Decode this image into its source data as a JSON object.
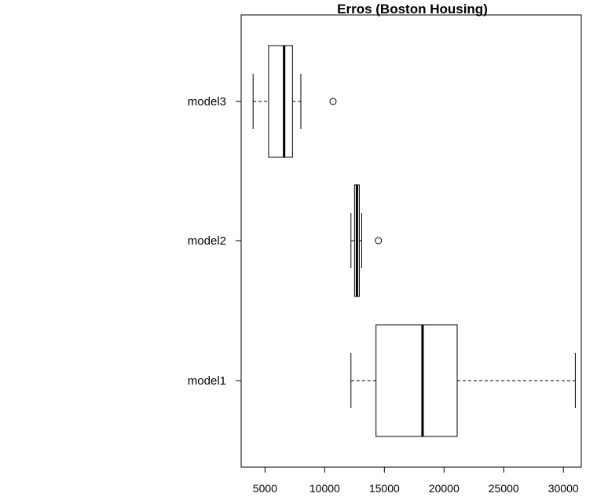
{
  "chart_data": {
    "type": "boxplot",
    "orientation": "horizontal",
    "title": "Erros (Boston Housing)",
    "xlabel": "",
    "ylabel": "",
    "xlim": [
      3000,
      31500
    ],
    "xticks": [
      5000,
      10000,
      15000,
      20000,
      25000,
      30000
    ],
    "xtick_labels": [
      "5000",
      "10000",
      "15000",
      "20000",
      "25000",
      "30000"
    ],
    "grid": false,
    "categories": [
      "model1",
      "model2",
      "model3"
    ],
    "boxes": [
      {
        "label": "model1",
        "whisker_low": 12200,
        "q1": 14300,
        "median": 18200,
        "q3": 21100,
        "whisker_high": 31000,
        "outliers": []
      },
      {
        "label": "model2",
        "whisker_low": 12200,
        "q1": 12500,
        "median": 12700,
        "q3": 12900,
        "whisker_high": 13100,
        "outliers": [
          14500
        ]
      },
      {
        "label": "model3",
        "whisker_low": 4000,
        "q1": 5300,
        "median": 6600,
        "q3": 7300,
        "whisker_high": 8000,
        "outliers": [
          10700
        ]
      }
    ]
  }
}
